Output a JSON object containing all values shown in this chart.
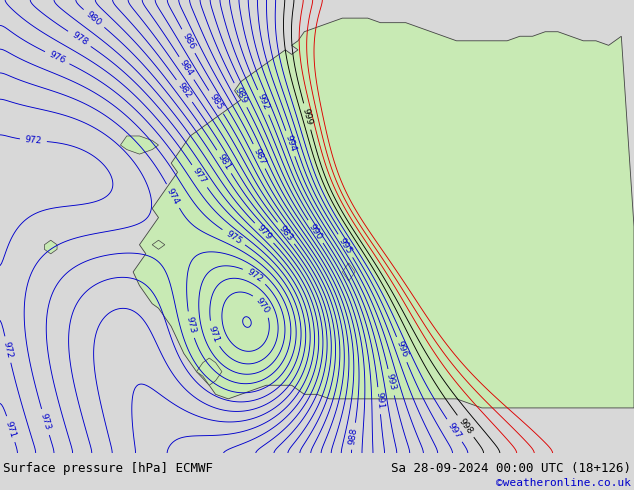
{
  "title_left": "Surface pressure [hPa] ECMWF",
  "title_right": "Sa 28-09-2024 00:00 UTC (18+126)",
  "watermark": "©weatheronline.co.uk",
  "sea_color": "#c8c8d0",
  "land_color": "#c8eab4",
  "contour_color_blue": "#0000cc",
  "contour_color_black": "#000000",
  "contour_color_red": "#dd0000",
  "border_color": "#444444",
  "text_color": "#000000",
  "watermark_color": "#0000cc",
  "footer_bg": "#d8d8d8",
  "fig_width": 6.34,
  "fig_height": 4.9,
  "dpi": 100,
  "footer_fontsize": 9,
  "watermark_fontsize": 8,
  "contour_label_fontsize": 6.5
}
